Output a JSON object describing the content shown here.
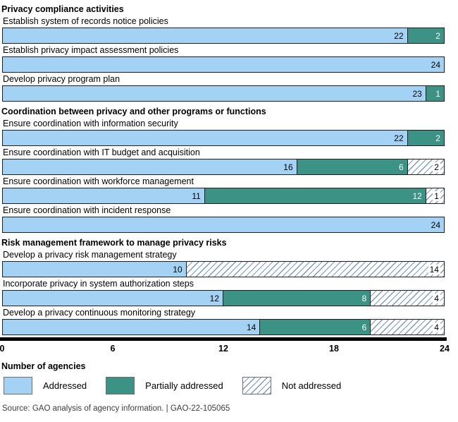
{
  "colors": {
    "addressed": "#a3d2f5",
    "partially_addressed": "#3b9285",
    "hatch_line": "#7b99bd",
    "bar_border": "#1f1f1f",
    "axis": "#000000"
  },
  "chart_data": {
    "type": "bar",
    "orientation": "horizontal",
    "stacked": true,
    "xlim": [
      0,
      24
    ],
    "x_ticks": [
      "0",
      "6",
      "12",
      "18",
      "24"
    ],
    "x_tick_values": [
      0,
      6,
      12,
      18,
      24
    ],
    "x_axis_label": "Number of agencies",
    "grid": false,
    "legend_position": "bottom",
    "series_names": [
      "Addressed",
      "Partially addressed",
      "Not addressed"
    ],
    "legend": [
      {
        "label": "Addressed",
        "style": "seg-addressed"
      },
      {
        "label": "Partially addressed",
        "style": "seg-partial"
      },
      {
        "label": "Not addressed",
        "style": "seg-notaddr"
      }
    ],
    "sections": [
      {
        "title": "Privacy compliance activities",
        "rows": [
          {
            "label": "Establish system of records notice policies",
            "values": [
              22,
              2,
              0
            ]
          },
          {
            "label": "Establish privacy impact assessment policies",
            "values": [
              24,
              0,
              0
            ]
          },
          {
            "label": "Develop privacy program plan",
            "values": [
              23,
              1,
              0
            ]
          }
        ]
      },
      {
        "title": "Coordination between privacy and other programs or functions",
        "rows": [
          {
            "label": "Ensure coordination with information security",
            "values": [
              22,
              2,
              0
            ]
          },
          {
            "label": "Ensure coordination with IT budget and acquisition",
            "values": [
              16,
              6,
              2
            ]
          },
          {
            "label": "Ensure coordination with workforce management",
            "values": [
              11,
              12,
              1
            ]
          },
          {
            "label": "Ensure coordination with incident response",
            "values": [
              24,
              0,
              0
            ]
          }
        ]
      },
      {
        "title": "Risk management framework to manage privacy risks",
        "rows": [
          {
            "label": "Develop a privacy risk management strategy",
            "values": [
              10,
              0,
              14
            ]
          },
          {
            "label": "Incorporate privacy in system authorization steps",
            "values": [
              12,
              8,
              4
            ]
          },
          {
            "label": "Develop a privacy continuous monitoring strategy",
            "values": [
              14,
              6,
              4
            ]
          }
        ]
      }
    ]
  },
  "footer": {
    "source": "Source: GAO analysis of agency information.  |  GAO-22-105065"
  }
}
